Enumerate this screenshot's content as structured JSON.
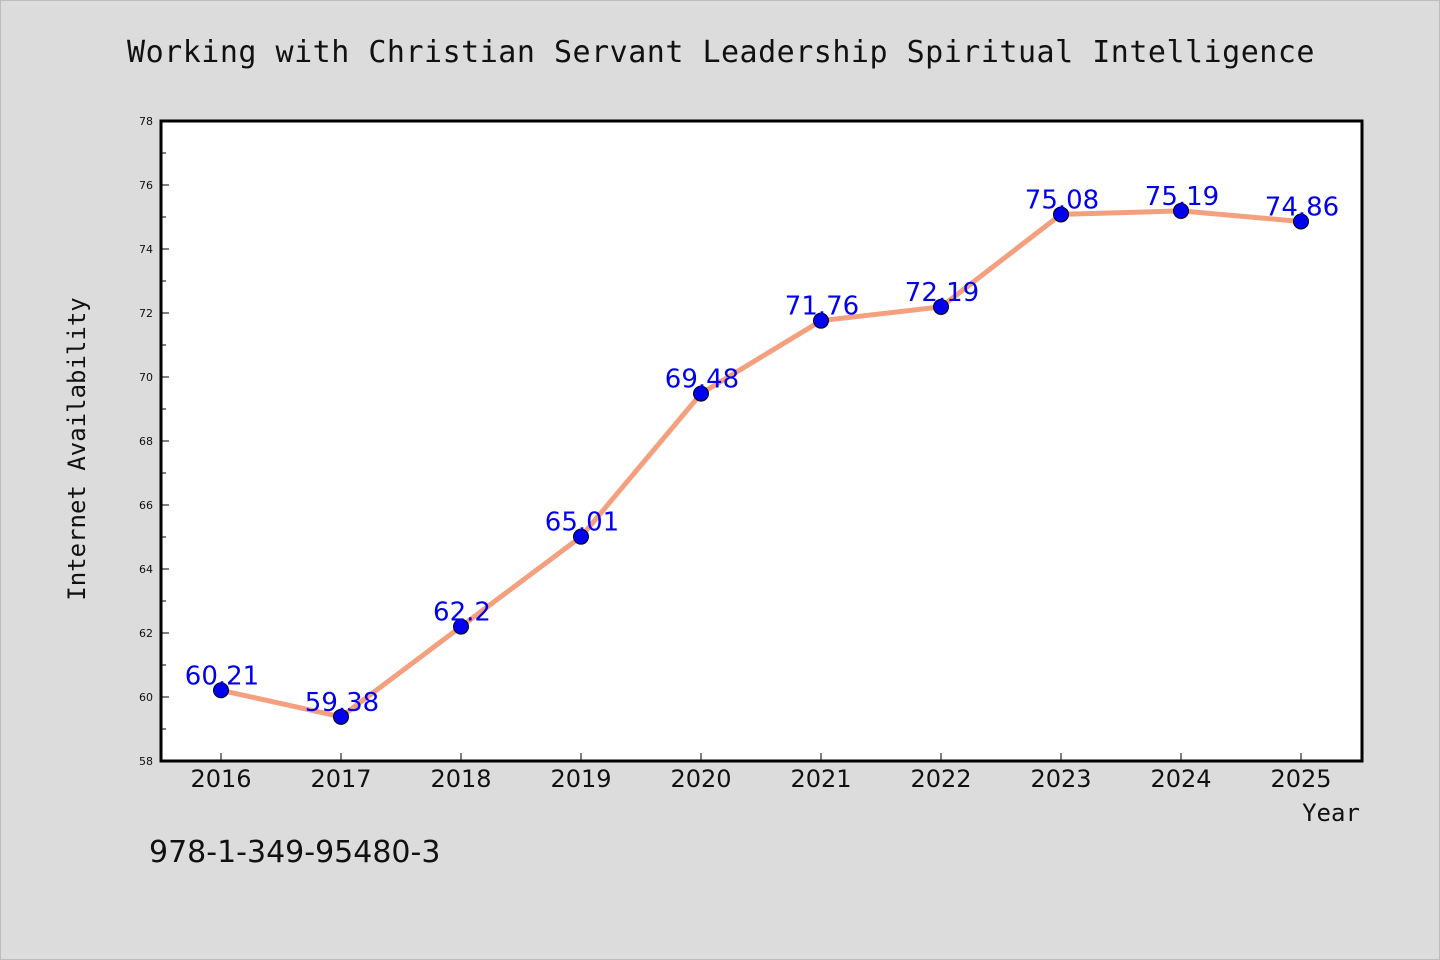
{
  "chart_data": {
    "type": "line",
    "title": "Working with Christian Servant Leadership Spiritual Intelligence",
    "xlabel": "Year",
    "ylabel": "Internet Availability",
    "categories": [
      "2016",
      "2017",
      "2018",
      "2019",
      "2020",
      "2021",
      "2022",
      "2023",
      "2024",
      "2025"
    ],
    "series": [
      {
        "values": [
          60.21,
          59.38,
          62.2,
          65.01,
          69.48,
          71.76,
          72.19,
          75.08,
          75.19,
          74.86
        ],
        "labels": [
          "60.21",
          "59.38",
          "62.2",
          "65.01",
          "69.48",
          "71.76",
          "72.19",
          "75.08",
          "75.19",
          "74.86"
        ]
      }
    ],
    "ylim": [
      58,
      78
    ],
    "yticks": [
      "58",
      "60",
      "62",
      "64",
      "66",
      "68",
      "70",
      "72",
      "74",
      "76",
      "78"
    ],
    "grid": false,
    "line_color": "#f4a07f",
    "marker_color": "#0000ee",
    "label_color": "#0000ee"
  },
  "footer": {
    "isbn": "978-1-349-95480-3"
  }
}
